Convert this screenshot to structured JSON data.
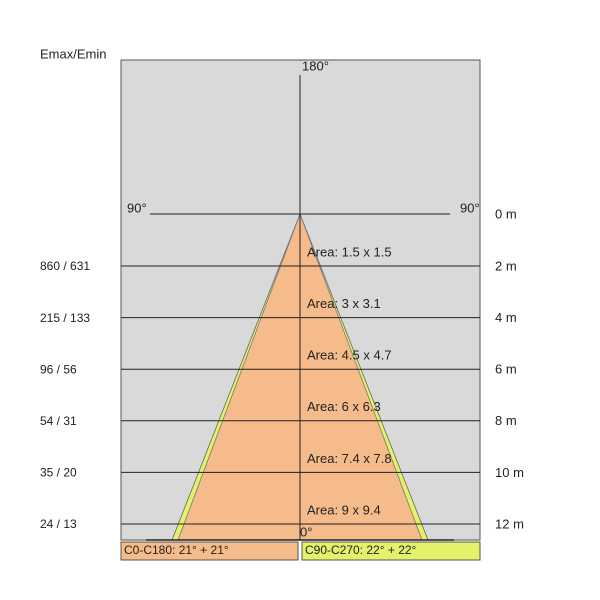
{
  "header": {
    "title": "Emax/Emin"
  },
  "angles": {
    "top": "180°",
    "left": "90°",
    "right": "90°",
    "bottom": "0°"
  },
  "origin": {
    "distance": "0 m"
  },
  "rows": [
    {
      "emax_emin": "860 / 631",
      "distance": "2 m",
      "area": "Area: 1.5  x  1.5"
    },
    {
      "emax_emin": "215 / 133",
      "distance": "4 m",
      "area": "Area: 3  x  3.1"
    },
    {
      "emax_emin": "96 / 56",
      "distance": "6 m",
      "area": "Area: 4.5  x  4.7"
    },
    {
      "emax_emin": "54 / 31",
      "distance": "8 m",
      "area": "Area: 6  x  6.3"
    },
    {
      "emax_emin": "35 / 20",
      "distance": "10 m",
      "area": "Area: 7.4  x  7.8"
    },
    {
      "emax_emin": "24 / 13",
      "distance": "12 m",
      "area": "Area: 9  x  9.4"
    }
  ],
  "legend": [
    {
      "label": "C0-C180: 21° + 21°",
      "color": "#f5bb8a"
    },
    {
      "label": "C90-C270: 22° + 22°",
      "color": "#e3f26a"
    }
  ]
}
